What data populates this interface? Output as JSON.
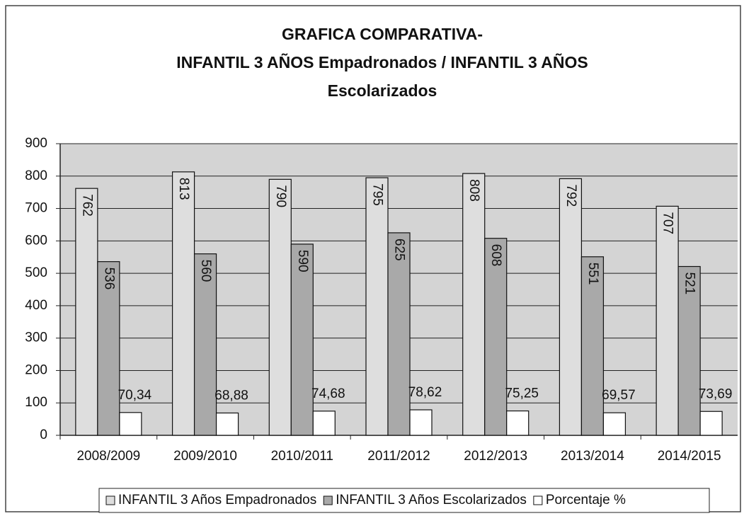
{
  "chart_data": {
    "type": "bar",
    "title": [
      "GRAFICA COMPARATIVA-",
      "INFANTIL 3 AÑOS Empadronados / INFANTIL 3 AÑOS",
      "Escolarizados"
    ],
    "categories": [
      "2008/2009",
      "2009/2010",
      "2010/2011",
      "2011/2012",
      "2012/2013",
      "2013/2014",
      "2014/2015"
    ],
    "series": [
      {
        "name": "INFANTIL 3 Años Empadronados",
        "color": "#dedede",
        "values": [
          762,
          813,
          790,
          795,
          808,
          792,
          707
        ]
      },
      {
        "name": "INFANTIL 3 Años Escolarizados",
        "color": "#a9a9a9",
        "values": [
          536,
          560,
          590,
          625,
          608,
          551,
          521
        ]
      },
      {
        "name": "Porcentaje %",
        "color": "#ffffff",
        "values": [
          70.34,
          68.88,
          74.68,
          78.62,
          75.25,
          69.57,
          73.69
        ],
        "value_labels": [
          "70,34",
          "68,88",
          "74,68",
          "78,62",
          "75,25",
          "69,57",
          "73,69"
        ]
      }
    ],
    "ylim": [
      0,
      900
    ],
    "yticks": [
      0,
      100,
      200,
      300,
      400,
      500,
      600,
      700,
      800,
      900
    ],
    "grid": true,
    "legend": "bottom"
  }
}
